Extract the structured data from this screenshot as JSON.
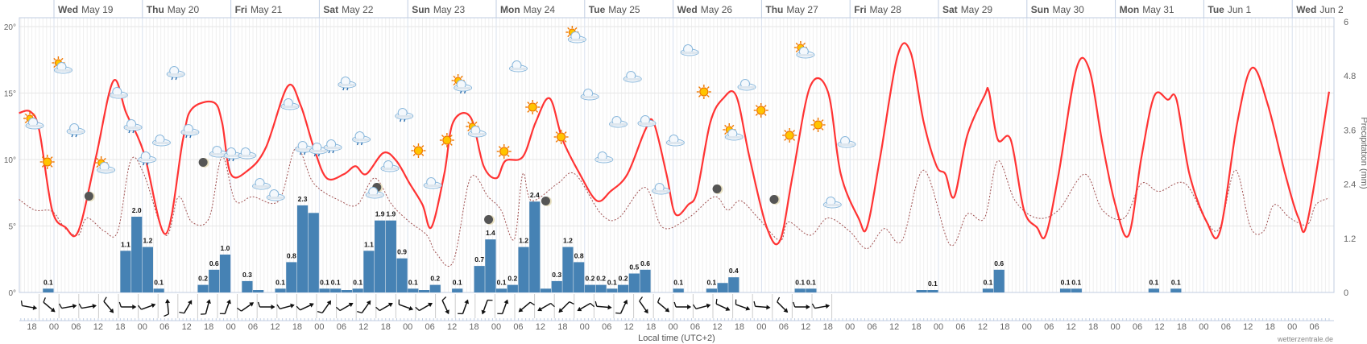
{
  "chart_data": {
    "type": "line",
    "title": "",
    "time_origin": "Wed May 19 00:00",
    "time_unit": "hours",
    "xlabel": "Local time (UTC+2)",
    "ylabel_left": "",
    "ylabel_right": "Precipitation (mm)",
    "ylim_left": [
      0,
      20
    ],
    "ylim_right": [
      0,
      6
    ],
    "left_ticks": [
      "0°",
      "5°",
      "10°",
      "15°",
      "20°"
    ],
    "left_tick_values": [
      0,
      5,
      10,
      15,
      20
    ],
    "right_ticks": [
      "0",
      "1.2",
      "2.4",
      "3.6",
      "4.8",
      "6"
    ],
    "right_tick_values": [
      0,
      1.2,
      2.4,
      3.6,
      4.8,
      6
    ],
    "grid": true,
    "days": [
      {
        "dow": "Wed",
        "date": "May 19"
      },
      {
        "dow": "Thu",
        "date": "May 20"
      },
      {
        "dow": "Fri",
        "date": "May 21"
      },
      {
        "dow": "Sat",
        "date": "May 22"
      },
      {
        "dow": "Sun",
        "date": "May 23"
      },
      {
        "dow": "Mon",
        "date": "May 24"
      },
      {
        "dow": "Tue",
        "date": "May 25"
      },
      {
        "dow": "Wed",
        "date": "May 26"
      },
      {
        "dow": "Thu",
        "date": "May 27"
      },
      {
        "dow": "Fri",
        "date": "May 28"
      },
      {
        "dow": "Sat",
        "date": "May 29"
      },
      {
        "dow": "Sun",
        "date": "May 30"
      },
      {
        "dow": "Mon",
        "date": "May 31"
      },
      {
        "dow": "Tue",
        "date": "Jun 1"
      },
      {
        "dow": "Wed",
        "date": "Jun 2"
      }
    ],
    "hour_labels": [
      "18",
      "00",
      "06",
      "12",
      "18",
      "00",
      "06",
      "12",
      "18",
      "00",
      "06",
      "12",
      "18",
      "00",
      "06",
      "12",
      "18",
      "00",
      "06",
      "12",
      "18",
      "00",
      "06",
      "12",
      "18",
      "00",
      "06",
      "12",
      "18",
      "00",
      "06",
      "12",
      "18",
      "00",
      "06",
      "12",
      "18",
      "00",
      "06",
      "12",
      "18",
      "00",
      "06",
      "12",
      "18",
      "00",
      "06",
      "12",
      "18",
      "00",
      "06",
      "12",
      "18",
      "00",
      "06",
      "12",
      "18",
      "00",
      "06"
    ],
    "series": [
      {
        "name": "Temperature",
        "color": "#ff3333",
        "points": [
          [
            -9.5,
            13.5
          ],
          [
            -6.4,
            13.6
          ],
          [
            -4,
            12.2
          ],
          [
            -0.5,
            6.2
          ],
          [
            3.1,
            4.9
          ],
          [
            6.6,
            4.6
          ],
          [
            11.4,
            10.2
          ],
          [
            16.1,
            15.9
          ],
          [
            19.6,
            13.5
          ],
          [
            24.4,
            10.5
          ],
          [
            30.3,
            4.4
          ],
          [
            35,
            11.5
          ],
          [
            37.4,
            13.8
          ],
          [
            43.3,
            14.3
          ],
          [
            45.6,
            12.8
          ],
          [
            48,
            8.9
          ],
          [
            52.7,
            9.2
          ],
          [
            57.5,
            10.9
          ],
          [
            63.4,
            15.5
          ],
          [
            66.9,
            14.1
          ],
          [
            70.5,
            10.9
          ],
          [
            74,
            8.6
          ],
          [
            78.7,
            8.9
          ],
          [
            81.8,
            9.5
          ],
          [
            84.7,
            8.9
          ],
          [
            89.4,
            10.5
          ],
          [
            92.9,
            9.9
          ],
          [
            96.5,
            8.2
          ],
          [
            100,
            6.6
          ],
          [
            102.4,
            4.9
          ],
          [
            105.9,
            8.9
          ],
          [
            108.3,
            12.8
          ],
          [
            113,
            13.2
          ],
          [
            116.6,
            9.5
          ],
          [
            120.1,
            8.6
          ],
          [
            122.5,
            9.9
          ],
          [
            127.2,
            10.2
          ],
          [
            130.7,
            12.8
          ],
          [
            134.5,
            14.6
          ],
          [
            138,
            11.5
          ],
          [
            142.7,
            8.9
          ],
          [
            147.3,
            6.9
          ],
          [
            151,
            7.6
          ],
          [
            155.6,
            8.9
          ],
          [
            160.4,
            12.2
          ],
          [
            162.7,
            12.8
          ],
          [
            166.2,
            8.9
          ],
          [
            168.6,
            5.9
          ],
          [
            172.1,
            6.6
          ],
          [
            174.5,
            7.6
          ],
          [
            178.1,
            12.8
          ],
          [
            181.6,
            14.6
          ],
          [
            185.1,
            14.8
          ],
          [
            188.7,
            10.2
          ],
          [
            193.4,
            4.9
          ],
          [
            197,
            3.9
          ],
          [
            200.5,
            8.9
          ],
          [
            205.2,
            15.5
          ],
          [
            210,
            15.1
          ],
          [
            213.5,
            8.9
          ],
          [
            218.3,
            5.6
          ],
          [
            220.6,
            4.9
          ],
          [
            224.2,
            10.2
          ],
          [
            228.9,
            17.8
          ],
          [
            232.4,
            18.1
          ],
          [
            236,
            12.8
          ],
          [
            239.5,
            9.5
          ],
          [
            241.9,
            8.9
          ],
          [
            244.3,
            7.2
          ],
          [
            247.8,
            11.8
          ],
          [
            252.5,
            14.8
          ],
          [
            253.7,
            15.1
          ],
          [
            256.1,
            11.5
          ],
          [
            259.6,
            11.5
          ],
          [
            263.2,
            6.2
          ],
          [
            266.7,
            4.9
          ],
          [
            269.1,
            4.3
          ],
          [
            272.6,
            8.9
          ],
          [
            277.4,
            16.8
          ],
          [
            280.9,
            16.8
          ],
          [
            284.5,
            11.2
          ],
          [
            288,
            6.6
          ],
          [
            291.6,
            4.3
          ],
          [
            295.1,
            10.2
          ],
          [
            298.6,
            14.8
          ],
          [
            302.2,
            14.5
          ],
          [
            304.6,
            14.5
          ],
          [
            308.1,
            8.9
          ],
          [
            312.8,
            5.3
          ],
          [
            316.4,
            4.6
          ],
          [
            321.1,
            12.8
          ],
          [
            325.1,
            16.9
          ],
          [
            329.4,
            14.1
          ],
          [
            334.1,
            8.9
          ],
          [
            337.7,
            5.6
          ],
          [
            340.1,
            5.3
          ],
          [
            346,
            15.1
          ]
        ]
      },
      {
        "name": "Dew point",
        "color": "#a05050",
        "points": [
          [
            -9.5,
            7.0
          ],
          [
            -5.2,
            6.2
          ],
          [
            -0.5,
            6.1
          ],
          [
            3.1,
            4.8
          ],
          [
            6.6,
            4.3
          ],
          [
            9,
            5.6
          ],
          [
            13.7,
            4.6
          ],
          [
            17.3,
            4.6
          ],
          [
            20.8,
            9.9
          ],
          [
            24.4,
            8.9
          ],
          [
            30.3,
            4.3
          ],
          [
            33.8,
            7.2
          ],
          [
            37.4,
            5.3
          ],
          [
            42.1,
            5.6
          ],
          [
            45.6,
            10.2
          ],
          [
            49.2,
            6.9
          ],
          [
            53.9,
            7.2
          ],
          [
            61,
            6.9
          ],
          [
            65.7,
            10.9
          ],
          [
            70.5,
            8.2
          ],
          [
            77.6,
            6.9
          ],
          [
            82.3,
            6.6
          ],
          [
            87,
            8.6
          ],
          [
            91.7,
            6.6
          ],
          [
            96.5,
            5.3
          ],
          [
            101.2,
            4.3
          ],
          [
            103.6,
            3.0
          ],
          [
            108.3,
            2.3
          ],
          [
            113,
            8.6
          ],
          [
            117.8,
            7.2
          ],
          [
            121.3,
            6.2
          ],
          [
            124.9,
            4.0
          ],
          [
            127.2,
            8.9
          ],
          [
            129.6,
            6.9
          ],
          [
            136.7,
            8.2
          ],
          [
            141.4,
            8.9
          ],
          [
            148.5,
            5.9
          ],
          [
            153.2,
            5.6
          ],
          [
            160.4,
            7.9
          ],
          [
            165.1,
            4.9
          ],
          [
            172.1,
            5.6
          ],
          [
            179.2,
            7.2
          ],
          [
            182.8,
            6.2
          ],
          [
            186.3,
            6.9
          ],
          [
            191.1,
            5.6
          ],
          [
            197,
            3.9
          ],
          [
            199.3,
            5.3
          ],
          [
            205.2,
            4.3
          ],
          [
            210,
            5.6
          ],
          [
            215.9,
            4.6
          ],
          [
            220.6,
            3.3
          ],
          [
            225.3,
            4.8
          ],
          [
            230.1,
            3.9
          ],
          [
            236,
            9.2
          ],
          [
            243.1,
            3.6
          ],
          [
            247.8,
            5.9
          ],
          [
            252.5,
            5.6
          ],
          [
            256.1,
            9.9
          ],
          [
            260.8,
            6.9
          ],
          [
            266.7,
            5.6
          ],
          [
            272.6,
            6.2
          ],
          [
            279.7,
            8.9
          ],
          [
            284.5,
            6.2
          ],
          [
            290.4,
            5.6
          ],
          [
            295.1,
            8.2
          ],
          [
            299.8,
            7.6
          ],
          [
            306.9,
            8.2
          ],
          [
            312.8,
            5.3
          ],
          [
            316.4,
            4.9
          ],
          [
            320.6,
            9.2
          ],
          [
            324.7,
            4.9
          ],
          [
            328.2,
            4.6
          ],
          [
            331.1,
            6.6
          ],
          [
            335.4,
            5.6
          ],
          [
            340.1,
            5.1
          ],
          [
            342.4,
            6.6
          ],
          [
            346,
            7.1
          ]
        ]
      }
    ],
    "precipitation": {
      "color": "#4682b4",
      "bin_hours": 3,
      "bars": [
        {
          "t": -3,
          "v": 0.1,
          "label": "0.1"
        },
        {
          "t": 18,
          "v": 1.1,
          "label": "1.1"
        },
        {
          "t": 21,
          "v": 2.0,
          "label": "2.0"
        },
        {
          "t": 24,
          "v": 1.2,
          "label": "1.2"
        },
        {
          "t": 27,
          "v": 0.1,
          "label": "0.1"
        },
        {
          "t": 39,
          "v": 0.2,
          "label": "0.2"
        },
        {
          "t": 42,
          "v": 0.6,
          "label": "0.6"
        },
        {
          "t": 45,
          "v": 1.0,
          "label": "1.0"
        },
        {
          "t": 51,
          "v": 0.3,
          "label": "0.3"
        },
        {
          "t": 54,
          "v": 0.05,
          "label": ""
        },
        {
          "t": 60,
          "v": 0.1,
          "label": "0.1"
        },
        {
          "t": 63,
          "v": 0.8,
          "label": "0.8"
        },
        {
          "t": 66,
          "v": 2.3,
          "label": "2.3"
        },
        {
          "t": 69,
          "v": 2.1,
          "label": ""
        },
        {
          "t": 72,
          "v": 0.1,
          "label": "0.1"
        },
        {
          "t": 75,
          "v": 0.1,
          "label": "0.1"
        },
        {
          "t": 78,
          "v": 0.05,
          "label": ""
        },
        {
          "t": 81,
          "v": 0.1,
          "label": "0.1"
        },
        {
          "t": 84,
          "v": 1.1,
          "label": "1.1"
        },
        {
          "t": 87,
          "v": 1.9,
          "label": "1.9"
        },
        {
          "t": 90,
          "v": 1.9,
          "label": "1.9"
        },
        {
          "t": 93,
          "v": 0.9,
          "label": "0.9"
        },
        {
          "t": 96,
          "v": 0.1,
          "label": "0.1"
        },
        {
          "t": 99,
          "v": 0.05,
          "label": ""
        },
        {
          "t": 102,
          "v": 0.2,
          "label": "0.2"
        },
        {
          "t": 108,
          "v": 0.1,
          "label": "0.1"
        },
        {
          "t": 114,
          "v": 0.7,
          "label": "0.7"
        },
        {
          "t": 117,
          "v": 1.4,
          "label": "1.4"
        },
        {
          "t": 120,
          "v": 0.1,
          "label": "0.1"
        },
        {
          "t": 123,
          "v": 0.2,
          "label": "0.2"
        },
        {
          "t": 126,
          "v": 1.2,
          "label": "1.2"
        },
        {
          "t": 129,
          "v": 2.4,
          "label": "2.4"
        },
        {
          "t": 132,
          "v": 0.1,
          "label": ""
        },
        {
          "t": 135,
          "v": 0.3,
          "label": "0.3"
        },
        {
          "t": 138,
          "v": 1.2,
          "label": "1.2"
        },
        {
          "t": 141,
          "v": 0.8,
          "label": "0.8"
        },
        {
          "t": 144,
          "v": 0.2,
          "label": "0.2"
        },
        {
          "t": 147,
          "v": 0.2,
          "label": "0.2"
        },
        {
          "t": 150,
          "v": 0.1,
          "label": "0.1"
        },
        {
          "t": 153,
          "v": 0.2,
          "label": "0.2"
        },
        {
          "t": 156,
          "v": 0.5,
          "label": "0.5"
        },
        {
          "t": 159,
          "v": 0.6,
          "label": "0.6"
        },
        {
          "t": 168,
          "v": 0.1,
          "label": "0.1"
        },
        {
          "t": 177,
          "v": 0.1,
          "label": "0.1"
        },
        {
          "t": 180,
          "v": 0.25,
          "label": ""
        },
        {
          "t": 183,
          "v": 0.4,
          "label": "0.4"
        },
        {
          "t": 201,
          "v": 0.1,
          "label": "0.1"
        },
        {
          "t": 204,
          "v": 0.1,
          "label": "0.1"
        },
        {
          "t": 234,
          "v": 0.05,
          "label": ""
        },
        {
          "t": 237,
          "v": 0.05,
          "label": "0.1"
        },
        {
          "t": 252,
          "v": 0.1,
          "label": "0.1"
        },
        {
          "t": 255,
          "v": 0.6,
          "label": "0.6"
        },
        {
          "t": 273,
          "v": 0.1,
          "label": "0.1"
        },
        {
          "t": 276,
          "v": 0.1,
          "label": "0.1"
        },
        {
          "t": 297,
          "v": 0.1,
          "label": "0.1"
        },
        {
          "t": 303,
          "v": 0.1,
          "label": "0.1"
        }
      ]
    },
    "wind_directions_deg": [
      10,
      40,
      -10,
      -10,
      50,
      0,
      -20,
      -95,
      -60,
      -75,
      -70,
      -35,
      0,
      -15,
      -25,
      -55,
      -30,
      -55,
      -30,
      20,
      -30,
      65,
      -70,
      110,
      -70,
      140,
      150,
      135,
      150,
      5,
      -65,
      55,
      40,
      0,
      -15,
      25,
      20,
      5,
      45,
      0,
      -10
    ],
    "weather_icons": [
      "sun-cloud",
      "sun",
      "sun-cloud",
      "rain",
      "moon",
      "sun-cloud",
      "cloud",
      "rain",
      "rain",
      "cloud",
      "rain",
      "rain",
      "moon",
      "cloud",
      "rain",
      "cloud",
      "cloud",
      "cloud",
      "cloud",
      "rain",
      "rain",
      "rain",
      "rain",
      "rain",
      "moon-cloud",
      "cloud",
      "rain",
      "sun",
      "cloud",
      "sun",
      "sun-cloud-rain",
      "sun-cloud",
      "moon",
      "sun",
      "cloud",
      "sun",
      "moon",
      "sun",
      "sun-cloud",
      "cloud",
      "cloud",
      "cloud",
      "cloud",
      "cloud",
      "cloud",
      "cloud",
      "cloud",
      "sun",
      "moon",
      "sun-cloud",
      "cloud",
      "sun",
      "moon",
      "sun",
      "sun-cloud",
      "sun",
      "cloud",
      "cloud"
    ]
  },
  "footer": {
    "xlabel": "Local time (UTC+2)",
    "credit": "wetterzentrale.de"
  }
}
